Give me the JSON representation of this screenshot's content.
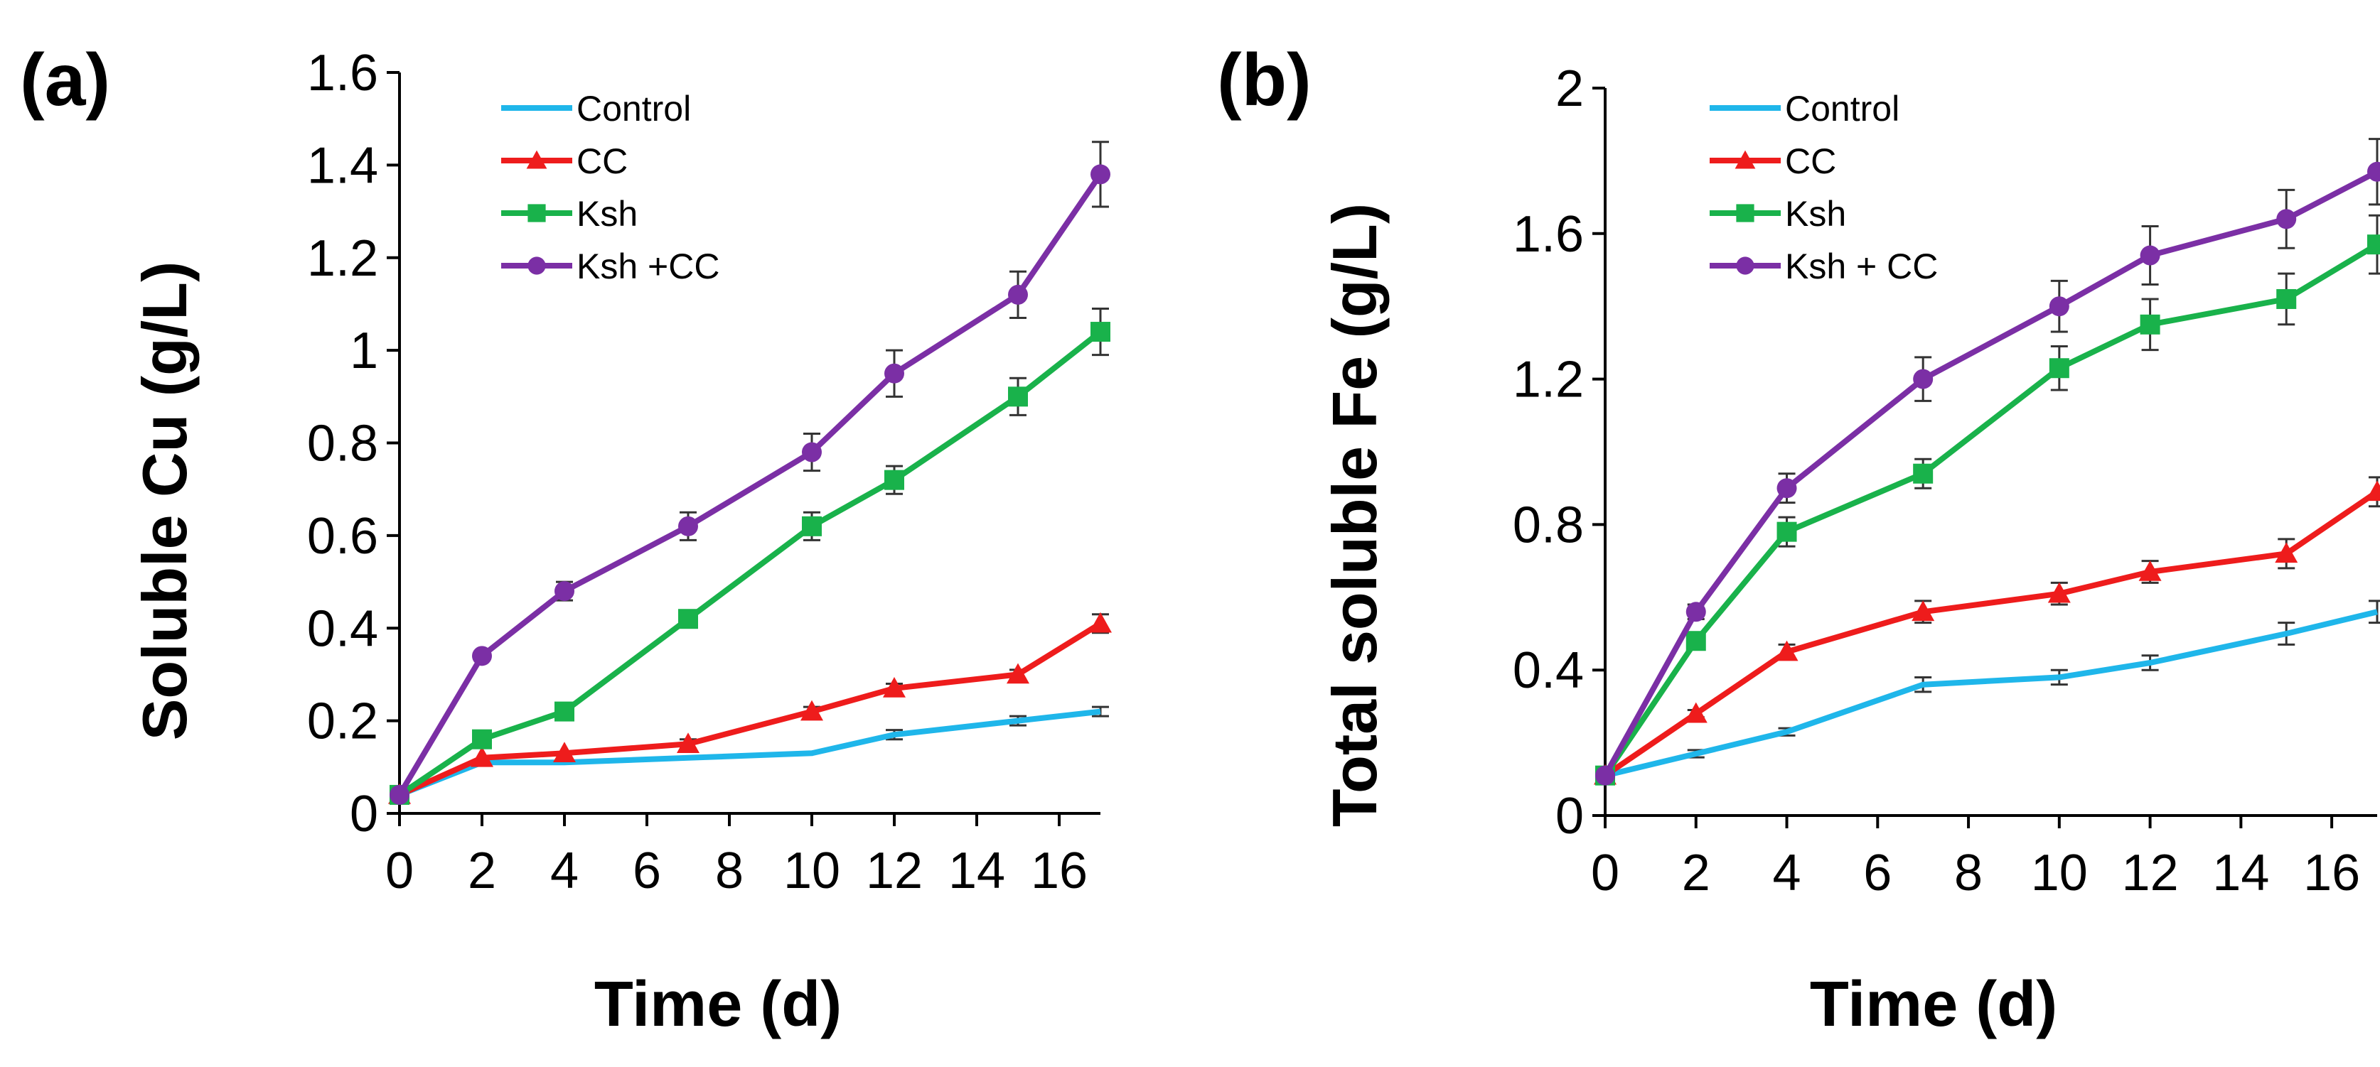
{
  "figure": {
    "colors": {
      "Control": "#1fb6ea",
      "CC": "#ee1c1c",
      "Ksh": "#19b24b",
      "Ksh+CC": "#7b2fa5"
    }
  },
  "chart_data": [
    {
      "panel": "(a)",
      "type": "line",
      "title": "",
      "xlabel": "Time (d)",
      "ylabel": "Soluble Cu (g/L)",
      "x": [
        0,
        2,
        4,
        7,
        10,
        12,
        15,
        17
      ],
      "xlim": [
        0,
        17
      ],
      "xticks": [
        0,
        2,
        4,
        6,
        8,
        10,
        12,
        14,
        16
      ],
      "ylim": [
        0,
        1.6
      ],
      "yticks": [
        0,
        0.2,
        0.4,
        0.6,
        0.8,
        1.0,
        1.2,
        1.4,
        1.6
      ],
      "ytick_labels": [
        "0",
        "0.2",
        "0.4",
        "0.6",
        "0.8",
        "1",
        "1.2",
        "1.4",
        "1.6"
      ],
      "grid": false,
      "legend_position": "top-center",
      "series": [
        {
          "name": "Control",
          "label": "Control",
          "marker": "none",
          "color": "#1fb6ea",
          "values": [
            0.04,
            0.11,
            0.11,
            0.12,
            0.13,
            0.17,
            0.2,
            0.22
          ],
          "errors": [
            0,
            0,
            0,
            0,
            0,
            0.01,
            0.01,
            0.01
          ]
        },
        {
          "name": "CC",
          "label": "CC",
          "marker": "triangle",
          "color": "#ee1c1c",
          "values": [
            0.04,
            0.12,
            0.13,
            0.15,
            0.22,
            0.27,
            0.3,
            0.41
          ],
          "errors": [
            0,
            0,
            0,
            0.01,
            0.01,
            0.01,
            0.01,
            0.02
          ]
        },
        {
          "name": "Ksh",
          "label": "Ksh",
          "marker": "square",
          "color": "#19b24b",
          "values": [
            0.04,
            0.16,
            0.22,
            0.42,
            0.62,
            0.72,
            0.9,
            1.04
          ],
          "errors": [
            0,
            0,
            0,
            0,
            0.03,
            0.03,
            0.04,
            0.05
          ]
        },
        {
          "name": "Ksh+CC",
          "label": "Ksh +CC",
          "marker": "circle",
          "color": "#7b2fa5",
          "values": [
            0.04,
            0.34,
            0.48,
            0.62,
            0.78,
            0.95,
            1.12,
            1.38
          ],
          "errors": [
            0,
            0,
            0.02,
            0.03,
            0.04,
            0.05,
            0.05,
            0.07
          ]
        }
      ]
    },
    {
      "panel": "(b)",
      "type": "line",
      "title": "",
      "xlabel": "Time (d)",
      "ylabel": "Total soluble Fe (g/L)",
      "x": [
        0,
        2,
        4,
        7,
        10,
        12,
        15,
        17
      ],
      "xlim": [
        0,
        17
      ],
      "xticks": [
        0,
        2,
        4,
        6,
        8,
        10,
        12,
        14,
        16
      ],
      "ylim": [
        0,
        2
      ],
      "yticks": [
        0,
        0.4,
        0.8,
        1.2,
        1.6,
        2.0
      ],
      "ytick_labels": [
        "0",
        "0.4",
        "0.8",
        "1.2",
        "1.6",
        "2"
      ],
      "grid": false,
      "legend_position": "top-center",
      "series": [
        {
          "name": "Control",
          "label": "Control",
          "marker": "none",
          "color": "#1fb6ea",
          "values": [
            0.11,
            0.17,
            0.23,
            0.36,
            0.38,
            0.42,
            0.5,
            0.56
          ],
          "errors": [
            0,
            0.01,
            0.01,
            0.02,
            0.02,
            0.02,
            0.03,
            0.03
          ]
        },
        {
          "name": "CC",
          "label": "CC",
          "marker": "triangle",
          "color": "#ee1c1c",
          "values": [
            0.11,
            0.28,
            0.45,
            0.56,
            0.61,
            0.67,
            0.72,
            0.89
          ],
          "errors": [
            0,
            0.01,
            0.02,
            0.03,
            0.03,
            0.03,
            0.04,
            0.04
          ]
        },
        {
          "name": "Ksh",
          "label": "Ksh",
          "marker": "square",
          "color": "#19b24b",
          "values": [
            0.11,
            0.48,
            0.78,
            0.94,
            1.23,
            1.35,
            1.42,
            1.57
          ],
          "errors": [
            0,
            0.02,
            0.04,
            0.04,
            0.06,
            0.07,
            0.07,
            0.08
          ]
        },
        {
          "name": "Ksh+CC",
          "label": "Ksh + CC",
          "marker": "circle",
          "color": "#7b2fa5",
          "values": [
            0.11,
            0.56,
            0.9,
            1.2,
            1.4,
            1.54,
            1.64,
            1.77
          ],
          "errors": [
            0,
            0.02,
            0.04,
            0.06,
            0.07,
            0.08,
            0.08,
            0.09
          ]
        }
      ]
    }
  ]
}
